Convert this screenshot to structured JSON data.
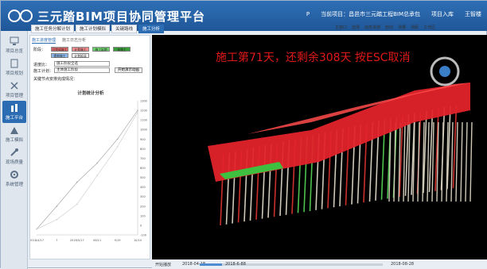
{
  "app": {
    "title": "三元踏BIM项目协同管理平台",
    "logo_icon": "logo-icon"
  },
  "header": {
    "items": [
      "P",
      "当前项目：昌邑市三元踏工程BIM总承包",
      "项目入库",
      "王智楼"
    ]
  },
  "sidebar": {
    "items": [
      {
        "label": "项目总览",
        "icon": "monitor-icon"
      },
      {
        "label": "项目规划",
        "icon": "document-icon"
      },
      {
        "label": "项目管理",
        "icon": "cross-icon"
      },
      {
        "label": "施工平台",
        "icon": "crane-icon",
        "active": true
      },
      {
        "label": "施工模拟",
        "icon": "building-icon"
      },
      {
        "label": "现场质量",
        "icon": "tool-icon"
      },
      {
        "label": "系统管理",
        "icon": "gear-icon"
      }
    ]
  },
  "panel_tabs": [
    {
      "label": "施工任务分解计划",
      "active": false
    },
    {
      "label": "施工计划模拟",
      "active": false
    },
    {
      "label": "关键路线",
      "active": false
    },
    {
      "label": "施工分析",
      "active": true
    }
  ],
  "toolbar": {
    "items": [
      "主窗口",
      "选择",
      "动态漫游",
      "剖切",
      "测量",
      "测距",
      "工作区"
    ]
  },
  "panel": {
    "subtabs": [
      "施工进度管理",
      "施工日志分析"
    ],
    "row1_label": "阶段：",
    "chips": [
      {
        "text": "已完成施工",
        "color": "#e56b6b"
      },
      {
        "text": "计划施工",
        "color": "#f08a8a"
      },
      {
        "text": "施工延期",
        "color": "#6fd36f"
      },
      {
        "text": "未施工",
        "color": "#3a9b3a"
      },
      {
        "text": "提前施工",
        "color": "#87b6ea"
      },
      {
        "text": "计划延误",
        "color": "#f0f0f0"
      }
    ],
    "scale_label": "进度比：",
    "scale_value": "施工阶段全选",
    "plan_label": "施工计划：",
    "plan_value": "主体施工阶段",
    "btn_label": "开始演示动画",
    "desc": "关键节点安排完成情况：",
    "chart_title": "计划统计分析"
  },
  "chart_data": {
    "type": "line",
    "title": "计划统计分析",
    "x": [
      "2018/4/17",
      "7",
      "2018/5/17",
      "06/11",
      "9/19",
      "10/10"
    ],
    "yticks": [
      -100,
      0,
      100,
      200,
      300,
      400,
      500,
      600,
      700,
      800,
      900,
      1000,
      1100,
      1200,
      1300
    ],
    "series": [
      {
        "name": "plan",
        "values": [
          -40,
          200,
          450,
          650,
          900,
          1200
        ]
      },
      {
        "name": "actual",
        "values": [
          -40,
          60,
          220,
          520,
          820,
          1180
        ]
      }
    ],
    "ylim": [
      -100,
      1300
    ]
  },
  "viewport": {
    "message": "施工第71天，还剩余308天  按ESC取消"
  },
  "bottom": {
    "left": "开始播放",
    "start": "2018-04-18",
    "mid": "2018-6-88",
    "end": "2018-08-28",
    "progress": 0.12
  }
}
